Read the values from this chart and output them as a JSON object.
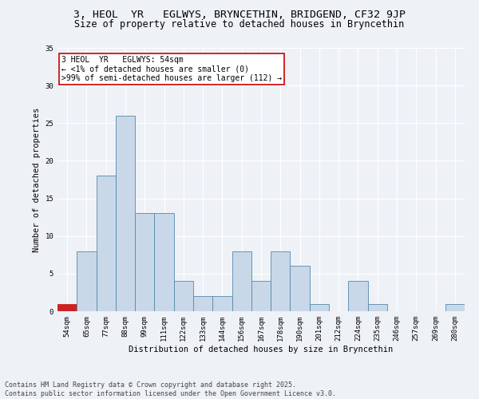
{
  "title_line1": "3, HEOL  YR   EGLWYS, BRYNCETHIN, BRIDGEND, CF32 9JP",
  "title_line2": "Size of property relative to detached houses in Bryncethin",
  "xlabel": "Distribution of detached houses by size in Bryncethin",
  "ylabel": "Number of detached properties",
  "categories": [
    "54sqm",
    "65sqm",
    "77sqm",
    "88sqm",
    "99sqm",
    "111sqm",
    "122sqm",
    "133sqm",
    "144sqm",
    "156sqm",
    "167sqm",
    "178sqm",
    "190sqm",
    "201sqm",
    "212sqm",
    "224sqm",
    "235sqm",
    "246sqm",
    "257sqm",
    "269sqm",
    "280sqm"
  ],
  "values": [
    1,
    8,
    18,
    26,
    13,
    13,
    4,
    2,
    2,
    8,
    4,
    8,
    6,
    1,
    0,
    4,
    1,
    0,
    0,
    0,
    1
  ],
  "bar_color": "#c8d8e8",
  "bar_edge_color": "#5588aa",
  "highlight_bar_color": "#cc2222",
  "annotation_text": "3 HEOL  YR   EGLWYS: 54sqm\n← <1% of detached houses are smaller (0)\n>99% of semi-detached houses are larger (112) →",
  "annotation_box_facecolor": "#ffffff",
  "annotation_box_edgecolor": "#cc0000",
  "ylim": [
    0,
    35
  ],
  "yticks": [
    0,
    5,
    10,
    15,
    20,
    25,
    30,
    35
  ],
  "background_color": "#eef2f7",
  "grid_color": "#ffffff",
  "footer_text": "Contains HM Land Registry data © Crown copyright and database right 2025.\nContains public sector information licensed under the Open Government Licence v3.0.",
  "title_fontsize": 9.5,
  "subtitle_fontsize": 8.5,
  "axis_label_fontsize": 7.5,
  "tick_fontsize": 6.5,
  "annotation_fontsize": 7,
  "footer_fontsize": 6
}
